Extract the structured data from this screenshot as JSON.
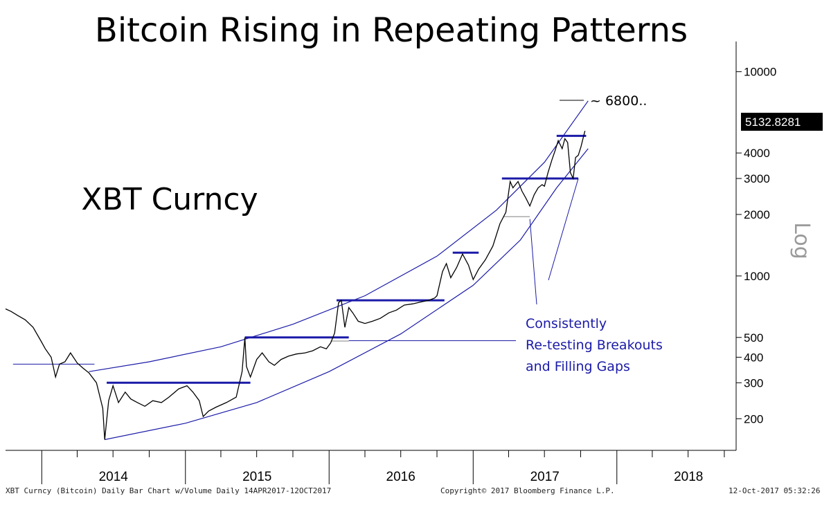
{
  "chart_data": {
    "type": "line",
    "title": "Bitcoin Rising in Repeating Patterns",
    "ticker_label": "XBT Curncy",
    "ylabel": "Log",
    "yscale": "log",
    "ylim": [
      140,
      13000
    ],
    "yticks": [
      10000,
      4000,
      3000,
      2000,
      1000,
      500,
      400,
      300,
      200
    ],
    "xlim": [
      "2013-10-01",
      "2018-10-31"
    ],
    "year_labels": [
      {
        "label": "2014",
        "date": "2014-01-01"
      },
      {
        "label": "2015",
        "date": "2015-01-01"
      },
      {
        "label": "2016",
        "date": "2016-01-01"
      },
      {
        "label": "2017",
        "date": "2017-01-01"
      },
      {
        "label": "2018",
        "date": "2018-01-01"
      }
    ],
    "last_price": "5132.8281",
    "target_annotation": "~ 6800..",
    "annotation_lines": [
      "Consistently",
      "Re-testing Breakouts",
      "and Filling Gaps"
    ],
    "footer_left": "XBT Curncy (Bitcoin) Daily Bar Chart w/Volume  Daily 14APR2017-12OCT2017",
    "footer_center": "Copyright© 2017 Bloomberg Finance L.P.",
    "footer_right": "12-Oct-2017 05:32:26",
    "series": [
      {
        "values": [
          [
            "2013-10-01",
            690
          ],
          [
            "2013-10-15",
            670
          ],
          [
            "2013-11-01",
            640
          ],
          [
            "2013-11-20",
            610
          ],
          [
            "2013-12-10",
            560
          ],
          [
            "2013-12-30",
            480
          ],
          [
            "2014-01-10",
            440
          ],
          [
            "2014-01-25",
            400
          ],
          [
            "2014-02-05",
            320
          ],
          [
            "2014-02-15",
            370
          ],
          [
            "2014-03-01",
            380
          ],
          [
            "2014-03-15",
            420
          ],
          [
            "2014-04-01",
            375
          ],
          [
            "2014-04-15",
            355
          ],
          [
            "2014-05-01",
            335
          ],
          [
            "2014-05-20",
            300
          ],
          [
            "2014-06-05",
            225
          ],
          [
            "2014-06-10",
            158
          ],
          [
            "2014-06-20",
            245
          ],
          [
            "2014-07-01",
            290
          ],
          [
            "2014-07-15",
            240
          ],
          [
            "2014-08-01",
            270
          ],
          [
            "2014-08-15",
            250
          ],
          [
            "2014-09-01",
            240
          ],
          [
            "2014-09-20",
            230
          ],
          [
            "2014-10-10",
            245
          ],
          [
            "2014-11-01",
            240
          ],
          [
            "2014-11-20",
            255
          ],
          [
            "2014-12-15",
            280
          ],
          [
            "2015-01-05",
            290
          ],
          [
            "2015-01-20",
            270
          ],
          [
            "2015-02-05",
            245
          ],
          [
            "2015-02-15",
            205
          ],
          [
            "2015-03-01",
            218
          ],
          [
            "2015-03-20",
            228
          ],
          [
            "2015-04-15",
            240
          ],
          [
            "2015-05-10",
            255
          ],
          [
            "2015-05-25",
            340
          ],
          [
            "2015-06-01",
            500
          ],
          [
            "2015-06-05",
            360
          ],
          [
            "2015-06-15",
            320
          ],
          [
            "2015-07-01",
            390
          ],
          [
            "2015-07-15",
            420
          ],
          [
            "2015-08-01",
            380
          ],
          [
            "2015-08-15",
            365
          ],
          [
            "2015-09-01",
            390
          ],
          [
            "2015-09-20",
            405
          ],
          [
            "2015-10-10",
            415
          ],
          [
            "2015-11-01",
            420
          ],
          [
            "2015-11-20",
            430
          ],
          [
            "2015-12-10",
            450
          ],
          [
            "2015-12-25",
            440
          ],
          [
            "2016-01-05",
            470
          ],
          [
            "2016-01-15",
            525
          ],
          [
            "2016-01-25",
            740
          ],
          [
            "2016-02-01",
            760
          ],
          [
            "2016-02-10",
            560
          ],
          [
            "2016-02-20",
            700
          ],
          [
            "2016-03-01",
            660
          ],
          [
            "2016-03-15",
            600
          ],
          [
            "2016-04-01",
            585
          ],
          [
            "2016-04-20",
            600
          ],
          [
            "2016-05-10",
            620
          ],
          [
            "2016-06-01",
            660
          ],
          [
            "2016-06-20",
            680
          ],
          [
            "2016-07-10",
            720
          ],
          [
            "2016-08-01",
            730
          ],
          [
            "2016-08-20",
            745
          ],
          [
            "2016-09-10",
            760
          ],
          [
            "2016-09-25",
            780
          ],
          [
            "2016-10-01",
            800
          ],
          [
            "2016-10-15",
            1050
          ],
          [
            "2016-10-25",
            1150
          ],
          [
            "2016-11-05",
            980
          ],
          [
            "2016-11-20",
            1100
          ],
          [
            "2016-12-05",
            1280
          ],
          [
            "2016-12-20",
            1130
          ],
          [
            "2017-01-01",
            960
          ],
          [
            "2017-01-15",
            1080
          ],
          [
            "2017-02-01",
            1200
          ],
          [
            "2017-02-20",
            1400
          ],
          [
            "2017-03-10",
            1800
          ],
          [
            "2017-03-25",
            2050
          ],
          [
            "2017-04-05",
            2900
          ],
          [
            "2017-04-12",
            2700
          ],
          [
            "2017-04-25",
            2900
          ],
          [
            "2017-05-05",
            2600
          ],
          [
            "2017-05-15",
            2400
          ],
          [
            "2017-05-25",
            2200
          ],
          [
            "2017-06-05",
            2500
          ],
          [
            "2017-06-15",
            2700
          ],
          [
            "2017-06-25",
            2800
          ],
          [
            "2017-07-01",
            2750
          ],
          [
            "2017-07-10",
            3200
          ],
          [
            "2017-07-20",
            3700
          ],
          [
            "2017-07-28",
            4100
          ],
          [
            "2017-08-05",
            4600
          ],
          [
            "2017-08-15",
            4200
          ],
          [
            "2017-08-22",
            4700
          ],
          [
            "2017-08-29",
            4500
          ],
          [
            "2017-09-05",
            3200
          ],
          [
            "2017-09-12",
            3000
          ],
          [
            "2017-09-18",
            3800
          ],
          [
            "2017-09-25",
            3900
          ],
          [
            "2017-10-02",
            4300
          ],
          [
            "2017-10-08",
            4800
          ],
          [
            "2017-10-12",
            5133
          ]
        ]
      }
    ]
  }
}
